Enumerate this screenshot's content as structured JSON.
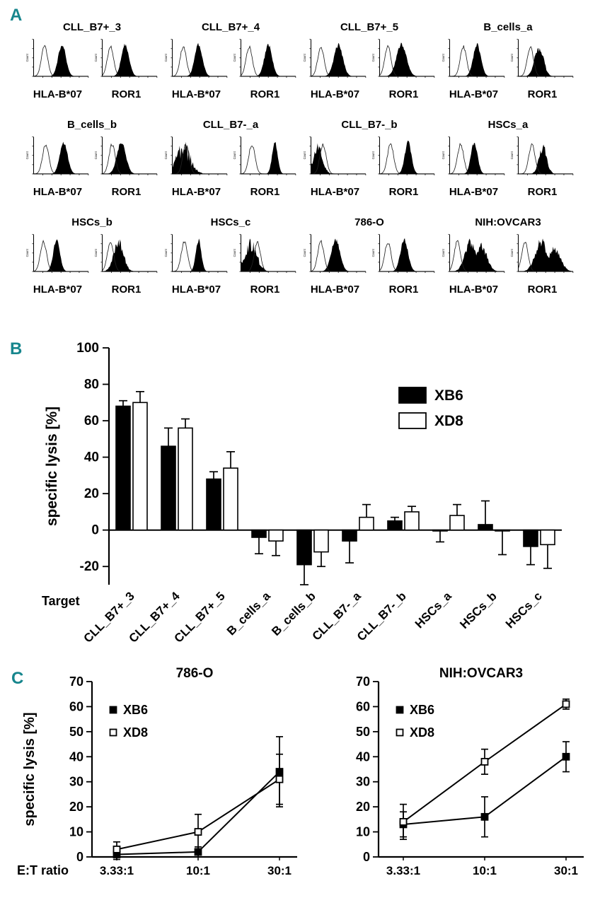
{
  "panels": {
    "a": "A",
    "b": "B",
    "c": "C"
  },
  "accent_color": "#17868d",
  "flow": {
    "count_label": "Count",
    "samples": [
      {
        "title": "CLL_B7+_3",
        "h": [
          {
            "x": "HLA-B*07",
            "open": 0.2,
            "peak": 0.52,
            "w": 0.07
          },
          {
            "x": "ROR1",
            "open": 0.15,
            "peak": 0.42,
            "w": 0.07
          }
        ]
      },
      {
        "title": "CLL_B7+_4",
        "h": [
          {
            "x": "HLA-B*07",
            "open": 0.2,
            "peak": 0.48,
            "w": 0.07
          },
          {
            "x": "ROR1",
            "open": 0.15,
            "peak": 0.5,
            "w": 0.07
          }
        ]
      },
      {
        "title": "CLL_B7+_5",
        "h": [
          {
            "x": "HLA-B*07",
            "open": 0.18,
            "peak": 0.5,
            "w": 0.08
          },
          {
            "x": "ROR1",
            "open": 0.15,
            "peak": 0.4,
            "w": 0.09
          }
        ]
      },
      {
        "title": "B_cells_a",
        "h": [
          {
            "x": "HLA-B*07",
            "open": 0.25,
            "peak": 0.5,
            "w": 0.07
          },
          {
            "x": "ROR1",
            "open": 0.22,
            "peak": 0.38,
            "w": 0.08,
            "noise": 0.3
          }
        ]
      },
      {
        "title": "B_cells_b",
        "h": [
          {
            "x": "HLA-B*07",
            "open": 0.22,
            "peak": 0.55,
            "w": 0.07
          },
          {
            "x": "ROR1",
            "open": 0.18,
            "peak": 0.35,
            "w": 0.08
          }
        ]
      },
      {
        "title": "CLL_B7-_a",
        "h": [
          {
            "x": "HLA-B*07",
            "open": 0.25,
            "peak": 0.2,
            "w": 0.13,
            "noise": 0.55
          },
          {
            "x": "ROR1",
            "open": 0.2,
            "peak": 0.62,
            "w": 0.05
          }
        ]
      },
      {
        "title": "CLL_B7-_b",
        "h": [
          {
            "x": "HLA-B*07",
            "open": 0.22,
            "peak": 0.13,
            "w": 0.08,
            "noise": 0.35
          },
          {
            "x": "ROR1",
            "open": 0.2,
            "peak": 0.52,
            "w": 0.06
          }
        ]
      },
      {
        "title": "HSCs_a",
        "h": [
          {
            "x": "HLA-B*07",
            "open": 0.2,
            "peak": 0.45,
            "w": 0.06
          },
          {
            "x": "ROR1",
            "open": 0.25,
            "peak": 0.45,
            "w": 0.07,
            "noise": 0.4
          }
        ]
      },
      {
        "title": "HSCs_b",
        "h": [
          {
            "x": "HLA-B*07",
            "open": 0.18,
            "peak": 0.42,
            "w": 0.06
          },
          {
            "x": "ROR1",
            "open": 0.15,
            "peak": 0.3,
            "w": 0.09,
            "noise": 0.35
          }
        ]
      },
      {
        "title": "HSCs_c",
        "h": [
          {
            "x": "HLA-B*07",
            "open": 0.22,
            "peak": 0.48,
            "w": 0.05
          },
          {
            "x": "ROR1",
            "open": 0.3,
            "peak": 0.18,
            "w": 0.11,
            "noise": 0.45
          }
        ]
      },
      {
        "title": "786-O",
        "h": [
          {
            "x": "HLA-B*07",
            "open": 0.18,
            "peak": 0.45,
            "w": 0.08
          },
          {
            "x": "ROR1",
            "open": 0.15,
            "peak": 0.45,
            "w": 0.07
          }
        ]
      },
      {
        "title": "NIH:OVCAR3",
        "h": [
          {
            "x": "HLA-B*07",
            "open": 0.14,
            "peak": 0.38,
            "w": 0.1,
            "peak2": 0.58,
            "p2h": 0.85,
            "noise": 0.3
          },
          {
            "x": "ROR1",
            "open": 0.12,
            "peak": 0.42,
            "w": 0.11,
            "peak2": 0.66,
            "p2h": 0.75,
            "noise": 0.3
          }
        ]
      }
    ]
  },
  "chart_data": [
    {
      "id": "panel-b-bars",
      "type": "bar",
      "title": "",
      "xlabel": "Target",
      "ylabel": "specific lysis [%]",
      "ylim": [
        -30,
        100
      ],
      "yticks": [
        -20,
        0,
        20,
        40,
        60,
        80,
        100
      ],
      "grid": false,
      "legend_position": "top-right",
      "categories": [
        "CLL_B7+_3",
        "CLL_B7+_4",
        "CLL_B7+_5",
        "B_cells_a",
        "B_cells_b",
        "CLL_B7-_a",
        "CLL_B7-_b",
        "HSCs_a",
        "HSCs_b",
        "HSCs_c"
      ],
      "series": [
        {
          "name": "XB6",
          "fill": "#000000",
          "values": [
            68,
            46,
            28,
            -4,
            -19,
            -6,
            5,
            -0.5,
            3,
            -9
          ],
          "errors": [
            3,
            10,
            4,
            9,
            11,
            12,
            2,
            6,
            13,
            10
          ]
        },
        {
          "name": "XD8",
          "fill": "#ffffff",
          "values": [
            70,
            56,
            34,
            -6,
            -12,
            7,
            10,
            8,
            -0.5,
            -8
          ],
          "errors": [
            6,
            5,
            9,
            8,
            8,
            7,
            3,
            6,
            13,
            13
          ]
        }
      ]
    },
    {
      "id": "panel-c-786O",
      "type": "line",
      "title": "786-O",
      "xlabel": "E:T ratio",
      "ylabel": "specific lysis [%]",
      "ylim": [
        0,
        70
      ],
      "yticks": [
        0,
        10,
        20,
        30,
        40,
        50,
        60,
        70
      ],
      "x": [
        "3.33:1",
        "10:1",
        "30:1"
      ],
      "legend_position": "top-left",
      "series": [
        {
          "name": "XB6",
          "marker": "filled-square",
          "values": [
            1,
            2,
            34
          ],
          "errors": [
            2,
            2,
            14
          ]
        },
        {
          "name": "XD8",
          "marker": "open-square",
          "values": [
            3,
            10,
            31
          ],
          "errors": [
            3,
            7,
            10
          ]
        }
      ]
    },
    {
      "id": "panel-c-OVCAR3",
      "type": "line",
      "title": "NIH:OVCAR3",
      "xlabel": "E:T ratio",
      "ylabel": "",
      "ylim": [
        0,
        70
      ],
      "yticks": [
        0,
        10,
        20,
        30,
        40,
        50,
        60,
        70
      ],
      "x": [
        "3.33:1",
        "10:1",
        "30:1"
      ],
      "legend_position": "top-left",
      "series": [
        {
          "name": "XB6",
          "marker": "filled-square",
          "values": [
            13,
            16,
            40
          ],
          "errors": [
            5,
            8,
            6
          ]
        },
        {
          "name": "XD8",
          "marker": "open-square",
          "values": [
            14,
            38,
            61
          ],
          "errors": [
            7,
            5,
            2
          ]
        }
      ]
    }
  ]
}
